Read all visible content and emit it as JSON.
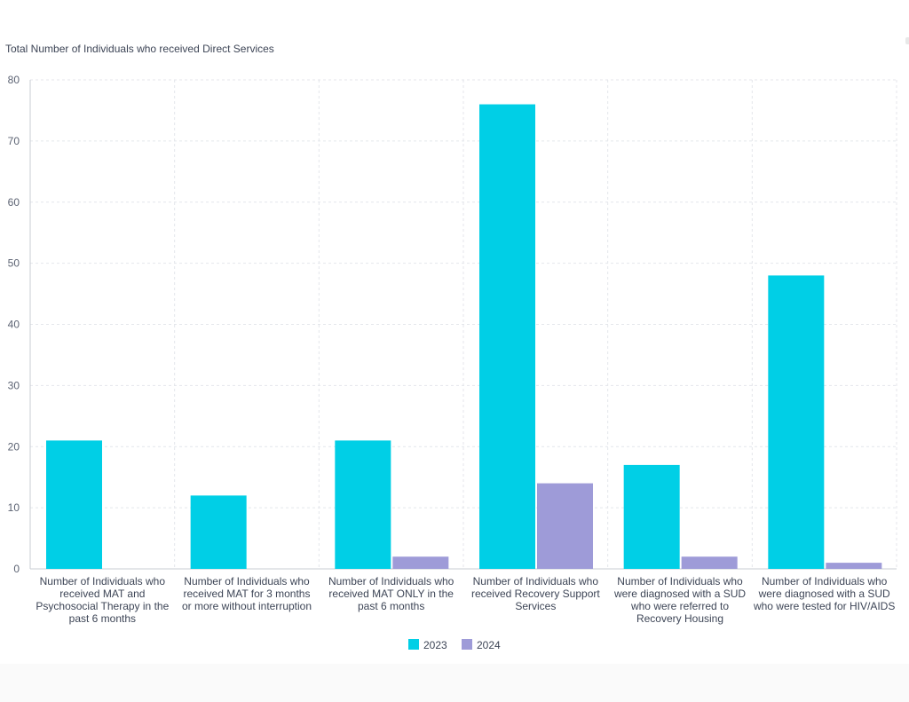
{
  "chart_data": {
    "type": "bar",
    "title": "Total Number of Individuals who received Direct Services",
    "xlabel": "",
    "ylabel": "",
    "ylim": [
      0,
      80
    ],
    "yticks": [
      0,
      10,
      20,
      30,
      40,
      50,
      60,
      70,
      80
    ],
    "grid": true,
    "legend_position": "bottom",
    "categories": [
      "Number of Individuals who received MAT and Psychosocial Therapy in the past 6 months",
      "Number of Individuals who received MAT for 3 months or more without interruption",
      "Number of Individuals who received MAT ONLY in the past 6 months",
      "Number of Individuals who received Recovery Support Services",
      "Number of Individuals who were diagnosed with a SUD who were referred to Recovery Housing",
      "Number of Individuals who were diagnosed with a SUD who were tested for HIV/AIDS"
    ],
    "category_label_lines": [
      [
        "Number of Individuals who",
        "received MAT and",
        "Psychosocial Therapy in the",
        "past 6 months"
      ],
      [
        "Number of Individuals who",
        "received MAT for 3 months",
        "or more without interruption"
      ],
      [
        "Number of Individuals who",
        "received MAT ONLY in the",
        "past 6 months"
      ],
      [
        "Number of Individuals who",
        "received Recovery Support",
        "Services"
      ],
      [
        "Number of Individuals who",
        "were diagnosed with a SUD",
        "who were referred to",
        "Recovery Housing"
      ],
      [
        "Number of Individuals who",
        "were diagnosed with a SUD",
        "who were tested for HIV/AIDS"
      ]
    ],
    "series": [
      {
        "name": "2023",
        "color": "#00cfe6",
        "values": [
          21,
          12,
          21,
          76,
          17,
          48
        ]
      },
      {
        "name": "2024",
        "color": "#9e9bd8",
        "values": [
          0,
          0,
          2,
          14,
          2,
          1
        ]
      }
    ]
  }
}
